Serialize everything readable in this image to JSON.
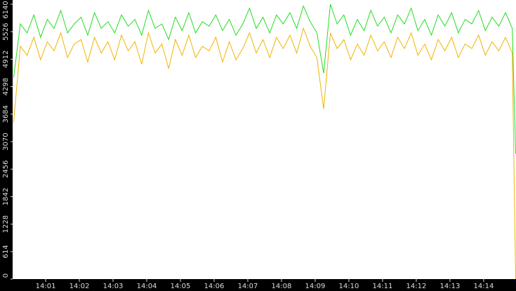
{
  "chart_data": {
    "type": "line",
    "x": [
      0.05,
      0.25,
      0.45,
      0.65,
      0.85,
      1.05,
      1.25,
      1.45,
      1.65,
      1.85,
      2.05,
      2.25,
      2.45,
      2.65,
      2.85,
      3.05,
      3.25,
      3.45,
      3.65,
      3.85,
      4.05,
      4.25,
      4.45,
      4.65,
      4.85,
      5.05,
      5.25,
      5.45,
      5.65,
      5.85,
      6.05,
      6.25,
      6.45,
      6.65,
      6.85,
      7.05,
      7.25,
      7.45,
      7.65,
      7.85,
      8.05,
      8.25,
      8.45,
      8.65,
      8.85,
      9.05,
      9.25,
      9.45,
      9.65,
      9.85,
      10.05,
      10.25,
      10.45,
      10.65,
      10.85,
      11.05,
      11.25,
      11.45,
      11.65,
      11.85,
      12.05,
      12.25,
      12.45,
      12.65,
      12.85,
      13.05,
      13.25,
      13.45,
      13.65,
      13.85,
      14.05,
      14.25,
      14.45,
      14.65,
      14.85,
      14.95
    ],
    "series": [
      {
        "color": "#22dd22",
        "values": [
          4500,
          5700,
          5500,
          5900,
          5400,
          5800,
          5600,
          6000,
          5500,
          5700,
          5850,
          5450,
          5950,
          5600,
          5750,
          5500,
          5900,
          5650,
          5800,
          5450,
          6000,
          5600,
          5700,
          5350,
          5850,
          5550,
          5950,
          5500,
          5750,
          5650,
          5900,
          5550,
          5800,
          5450,
          5700,
          6050,
          5600,
          5850,
          5500,
          5900,
          5700,
          5950,
          5600,
          6100,
          5750,
          5500,
          4600,
          6140,
          5700,
          5900,
          5450,
          5800,
          5550,
          6000,
          5650,
          5850,
          5500,
          5900,
          5700,
          6050,
          5550,
          5800,
          5450,
          5900,
          5650,
          5950,
          5500,
          5800,
          5700,
          6000,
          5550,
          5850,
          5650,
          5950,
          5600,
          2800
        ]
      },
      {
        "color": "#f0b400",
        "values": [
          3500,
          5200,
          5000,
          5400,
          4900,
          5300,
          5100,
          5500,
          4950,
          5250,
          5350,
          4850,
          5400,
          5050,
          5300,
          4900,
          5450,
          5100,
          5300,
          4800,
          5500,
          5050,
          5250,
          4700,
          5350,
          5000,
          5450,
          4950,
          5200,
          5100,
          5400,
          4850,
          5300,
          4900,
          5150,
          5500,
          5050,
          5350,
          4950,
          5400,
          5150,
          5450,
          5050,
          5600,
          5200,
          4950,
          3800,
          5500,
          5150,
          5350,
          4900,
          5250,
          5000,
          5450,
          5100,
          5300,
          4950,
          5400,
          5150,
          5500,
          5000,
          5250,
          4900,
          5350,
          5100,
          5400,
          4950,
          5250,
          5150,
          5450,
          5000,
          5300,
          5100,
          5400,
          5050,
          0
        ]
      }
    ],
    "xlim": [
      0.02,
      14.96
    ],
    "xticks": [
      {
        "value": 1,
        "label": "14:01"
      },
      {
        "value": 2,
        "label": "14:02"
      },
      {
        "value": 3,
        "label": "14:03"
      },
      {
        "value": 4,
        "label": "14:04"
      },
      {
        "value": 5,
        "label": "14:05"
      },
      {
        "value": 6,
        "label": "14:06"
      },
      {
        "value": 7,
        "label": "14:07"
      },
      {
        "value": 8,
        "label": "14:08"
      },
      {
        "value": 9,
        "label": "14:09"
      },
      {
        "value": 10,
        "label": "14:10"
      },
      {
        "value": 11,
        "label": "14:11"
      },
      {
        "value": 12,
        "label": "14:12"
      },
      {
        "value": 13,
        "label": "14:13"
      },
      {
        "value": 14,
        "label": "14:14"
      }
    ],
    "ylim": [
      0,
      6140
    ],
    "yticks": [
      0,
      614,
      1228,
      1842,
      2456,
      3070,
      3684,
      4298,
      4912,
      5526,
      6140
    ]
  }
}
